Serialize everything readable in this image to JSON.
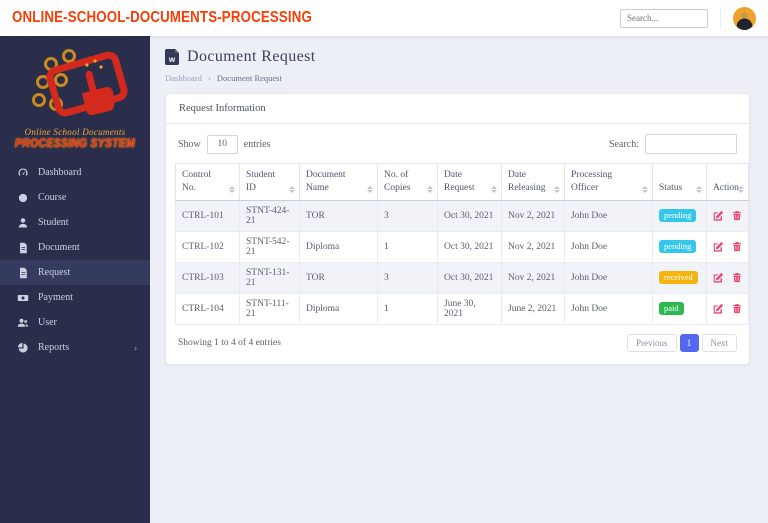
{
  "colors": {
    "brand_text": "#fb3c05",
    "sidebar_bg": "#2a2e4a",
    "active_page_bg": "#5566ef",
    "status": {
      "pending": "#34c7ea",
      "received": "#f5b40e",
      "paid": "#2eb94f"
    },
    "action_icon": "#e8476e"
  },
  "topbar": {
    "brand": "ONLINE-SCHOOL-DOCUMENTS-PROCESSING",
    "search_placeholder": "Search...",
    "avatar_icon": "user-avatar"
  },
  "sidebar": {
    "logo": {
      "script_line": "Online School Documents",
      "system_line": "PROCESSING SYSTEM"
    },
    "items": [
      {
        "label": "Dashboard",
        "icon": "speedometer-icon",
        "active": false
      },
      {
        "label": "Course",
        "icon": "circle-icon",
        "active": false
      },
      {
        "label": "Student",
        "icon": "person-icon",
        "active": false
      },
      {
        "label": "Document",
        "icon": "file-icon",
        "active": false
      },
      {
        "label": "Request",
        "icon": "file-icon",
        "active": true
      },
      {
        "label": "Payment",
        "icon": "money-icon",
        "active": false
      },
      {
        "label": "User",
        "icon": "people-icon",
        "active": false
      },
      {
        "label": "Reports",
        "icon": "pie-chart-icon",
        "active": false,
        "chevron": "›"
      }
    ]
  },
  "page": {
    "title": "Document Request",
    "title_icon": "word-document-icon",
    "breadcrumb": {
      "parent": "Dashboard",
      "separator": "›",
      "current": "Document Request"
    }
  },
  "card": {
    "title": "Request Information",
    "show_label": "Show",
    "entries_value": "10",
    "entries_label": "entries",
    "search_label": "Search:",
    "table": {
      "columns": [
        "Control No.",
        "Student ID",
        "Document Name",
        "No. of Copies",
        "Date Request",
        "Date Releasing",
        "Processing Officer",
        "Status",
        "Action"
      ],
      "rows": [
        {
          "control_no": "CTRL-101",
          "student_id": "STNT-424-21",
          "document_name": "TOR",
          "copies": "3",
          "date_request": "Oct 30, 2021",
          "date_releasing": "Nov 2, 2021",
          "officer": "John Doe",
          "status": "pending"
        },
        {
          "control_no": "CTRL-102",
          "student_id": "STNT-542-21",
          "document_name": "Diploma",
          "copies": "1",
          "date_request": "Oct 30, 2021",
          "date_releasing": "Nov 2, 2021",
          "officer": "John Doe",
          "status": "pending"
        },
        {
          "control_no": "CTRL-103",
          "student_id": "STNT-131-21",
          "document_name": "TOR",
          "copies": "3",
          "date_request": "Oct 30, 2021",
          "date_releasing": "Nov 2, 2021",
          "officer": "John Doe",
          "status": "received"
        },
        {
          "control_no": "CTRL-104",
          "student_id": "STNT-111-21",
          "document_name": "Diploma",
          "copies": "1",
          "date_request": "June 30, 2021",
          "date_releasing": "June 2, 2021",
          "officer": "John Doe",
          "status": "paid"
        }
      ]
    },
    "footer": {
      "summary": "Showing 1 to 4 of 4 entries",
      "previous_label": "Previous",
      "active_page": "1",
      "next_label": "Next"
    }
  }
}
